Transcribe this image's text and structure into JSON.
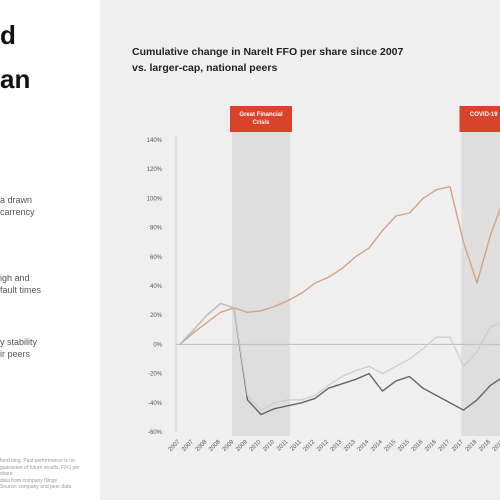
{
  "left": {
    "headline_lines": [
      "d",
      "an"
    ],
    "paragraphs": [
      "a drawn\ncarrency",
      "igh and\nfault times",
      "y stability\nir peers"
    ],
    "footnote": "fund blog. Past performance is no guarantee of future results. FFO per share\ndata from company filings\nSource: company and peer data"
  },
  "chart_title": "Cumulative change in Narelt FFO per share since 2007",
  "chart_subtitle": "vs. larger-cap, national peers",
  "colors": {
    "series_a": "#d9a27f",
    "series_b": "#666666",
    "series_c": "#cccccc",
    "badge": "#d9432a",
    "shade": "#dedede",
    "zero_line": "#bbbbbb"
  },
  "chart_data": {
    "type": "line",
    "ylim": [
      -60,
      140
    ],
    "y_ticks": [
      -60,
      -40,
      -20,
      0,
      20,
      40,
      60,
      80,
      100,
      120,
      140
    ],
    "y_tick_labels": [
      "-60%",
      "-40%",
      "-20%",
      "0%",
      "20%",
      "40%",
      "60%",
      "80%",
      "100%",
      "120%",
      "140%"
    ],
    "x": [
      "2007",
      "2007",
      "2008",
      "2008",
      "2009",
      "2009",
      "2010",
      "2010",
      "2011",
      "2011",
      "2012",
      "2012",
      "2013",
      "2013",
      "2014",
      "2014",
      "2015",
      "2015",
      "2016",
      "2016",
      "2017",
      "2017",
      "2018",
      "2018",
      "2019"
    ],
    "shaded_periods": [
      {
        "label": "Great Financial Crisis",
        "start_index": 4,
        "end_index": 8
      },
      {
        "label": "COVID-19",
        "start_index": 21,
        "end_index": 24
      }
    ],
    "series": [
      {
        "key": "a",
        "values": [
          0,
          8,
          15,
          22,
          25,
          22,
          23,
          26,
          30,
          35,
          42,
          46,
          52,
          60,
          66,
          78,
          88,
          90,
          100,
          106,
          108,
          70,
          42,
          75,
          100
        ]
      },
      {
        "key": "b",
        "values": [
          0,
          10,
          20,
          28,
          25,
          -38,
          -48,
          -44,
          -42,
          -40,
          -37,
          -30,
          -27,
          -24,
          -20,
          -32,
          -25,
          -22,
          -30,
          -35,
          -40,
          -45,
          -38,
          -28,
          -22
        ]
      },
      {
        "key": "c",
        "values": [
          0,
          10,
          20,
          28,
          25,
          -35,
          -45,
          -40,
          -38,
          -38,
          -35,
          -28,
          -22,
          -18,
          -15,
          -20,
          -15,
          -10,
          -3,
          5,
          5,
          -15,
          -5,
          12,
          15
        ]
      }
    ]
  }
}
